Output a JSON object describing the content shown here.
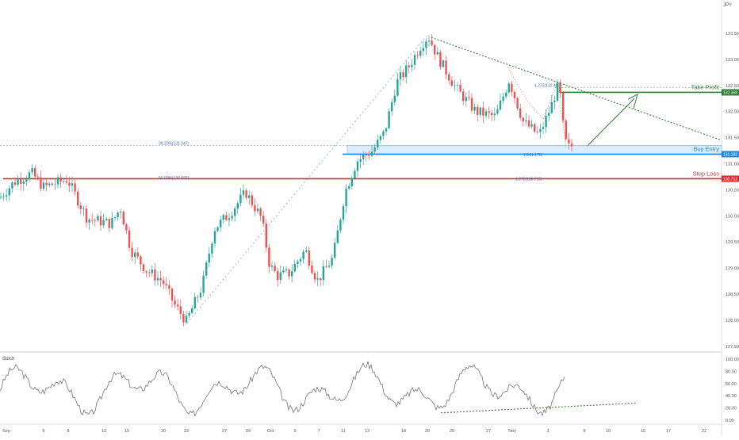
{
  "chart_data": [
    {
      "type": "candlestick",
      "symbol": "JPY",
      "x_ticks": [
        "Sep",
        "6",
        "8",
        "13",
        "15",
        "20",
        "22",
        "27",
        "29",
        "Oct",
        "5",
        "7",
        "11",
        "13",
        "18",
        "20",
        "25",
        "27",
        "Nov",
        "3",
        "8",
        "10",
        "15",
        "17",
        "22"
      ],
      "y_ticks": [
        "133.500",
        "133.000",
        "132.500",
        "132.000",
        "131.500",
        "131.000",
        "130.500",
        "130.000",
        "129.500",
        "129.000",
        "128.500",
        "128.000",
        "127.500"
      ],
      "ylim": [
        127.3,
        133.9
      ],
      "levels": [
        {
          "name": "Take Profit",
          "value": 132.368,
          "label": "Take Profit",
          "tag": "132.368",
          "color": "#2e7d32"
        },
        {
          "name": "Buy Entry",
          "value": 131.183,
          "label": "Buy Entry",
          "tag": "131.183",
          "color": "#1e88e5"
        },
        {
          "name": "Stop Loss",
          "value": 130.712,
          "label": "Stop Loss",
          "tag": "130.712",
          "color": "#d32f2f"
        }
      ],
      "fib_annotations": [
        {
          "text": "38.20%(131.347)",
          "value": 131.347
        },
        {
          "text": "50.00%(130.692)",
          "value": 130.692
        },
        {
          "text": "1.272(132.457)",
          "value": 132.457
        },
        {
          "text": "1(131.176)",
          "value": 131.176
        },
        {
          "text": "1.272(130.715)",
          "value": 130.715
        }
      ],
      "colors": {
        "up": "#26a69a",
        "down": "#ef5350",
        "take_profit": "#2e7d32",
        "entry": "#1e88e5",
        "stop": "#d32f2f"
      }
    },
    {
      "type": "line",
      "name": "Stoch",
      "label": "Stoch",
      "y_ticks": [
        "100.00",
        "80.00",
        "60.00",
        "40.00",
        "20.00",
        "0.00"
      ],
      "ylim": [
        -5,
        105
      ],
      "color": "#757575"
    }
  ]
}
